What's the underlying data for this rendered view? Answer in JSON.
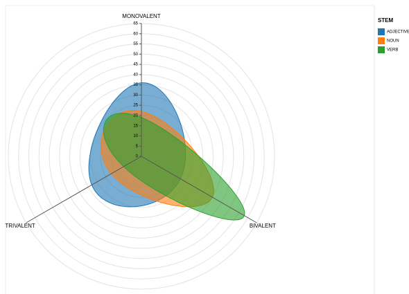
{
  "chart_data": {
    "type": "radar",
    "categories": [
      "MONOVALENT",
      "BIVALENT",
      "TRIVALENT"
    ],
    "rlim": [
      0,
      65
    ],
    "rticks": [
      0,
      5,
      10,
      15,
      20,
      25,
      30,
      35,
      40,
      45,
      50,
      55,
      60,
      65
    ],
    "legend": {
      "title": "STEM",
      "position": "top-right"
    },
    "series": [
      {
        "name": "ADJECTIVE",
        "color": "#1f77b4",
        "values": [
          36,
          22,
          28
        ]
      },
      {
        "name": "NOUN",
        "color": "#ff7f0e",
        "values": [
          22,
          40,
          17
        ]
      },
      {
        "name": "VERB",
        "color": "#2ca02c",
        "values": [
          19,
          58,
          10
        ]
      }
    ]
  }
}
